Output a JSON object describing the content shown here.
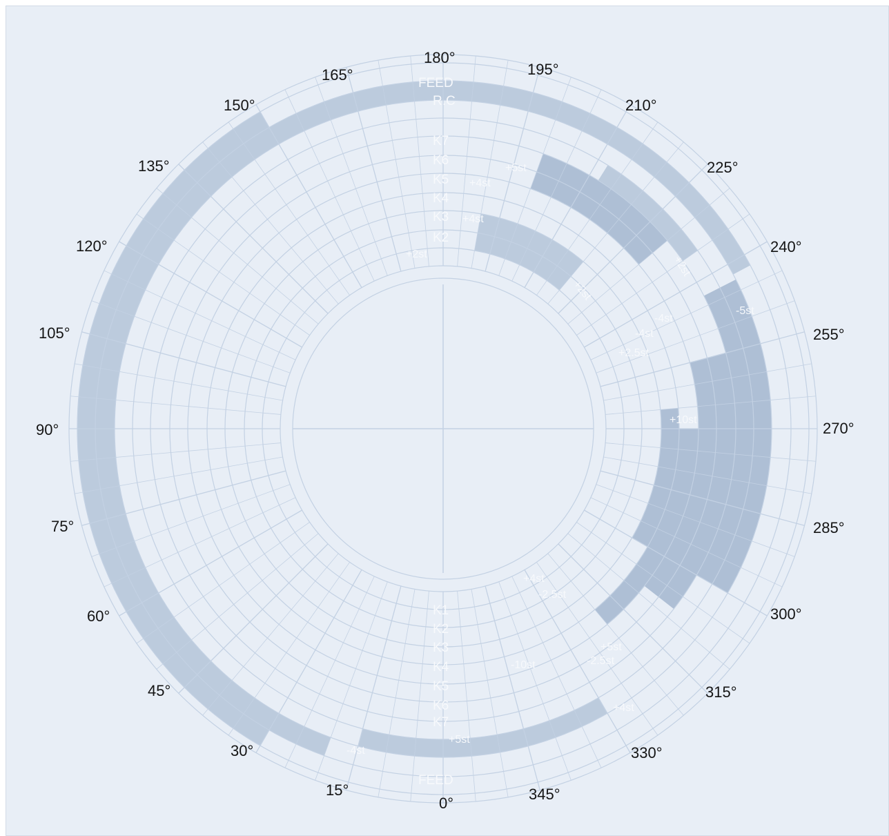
{
  "diagram": {
    "degree_labels": [
      "180°",
      "195°",
      "210°",
      "225°",
      "240°",
      "255°",
      "270°",
      "285°",
      "300°",
      "315°",
      "330°",
      "345°",
      "0°",
      "15°",
      "30°",
      "45°",
      "60°",
      "75°",
      "90°",
      "105°",
      "120°",
      "135°",
      "150°",
      "165°"
    ],
    "top_ring_labels": [
      "FEED",
      "R.C",
      "K7",
      "K6",
      "K5",
      "K4",
      "K3",
      "K2"
    ],
    "bottom_ring_labels": [
      "K1",
      "K2",
      "K3",
      "K4",
      "K5",
      "K6",
      "K7",
      "FEED"
    ],
    "band_labels": [
      "+5st",
      "+4st",
      "+4st",
      "+2st",
      "+2st",
      "+2st",
      "-5st",
      "-4st",
      "-4st",
      "+2.5st",
      "+10st",
      "+4st",
      "-2.5st",
      "+5st",
      "-2.5st",
      "-10st",
      "+4st",
      "+5st",
      "-4st"
    ],
    "colors": {
      "background": "#e8eef6",
      "grid": "#c3d1e3",
      "band": "#bccbdd",
      "band_dark": "#aebfd5",
      "text": "#141414",
      "engraved_text": "#f7f9fc"
    }
  }
}
